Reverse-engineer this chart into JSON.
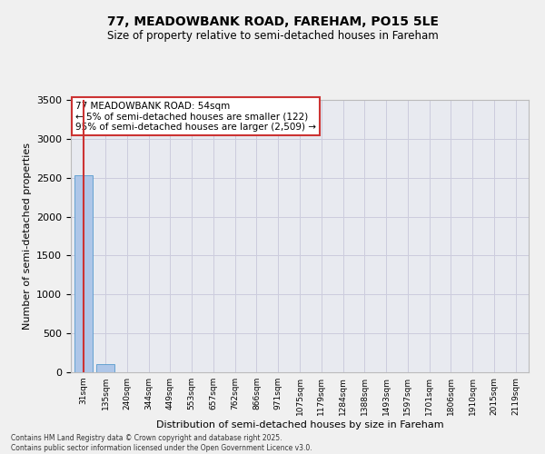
{
  "title_line1": "77, MEADOWBANK ROAD, FAREHAM, PO15 5LE",
  "title_line2": "Size of property relative to semi-detached houses in Fareham",
  "xlabel": "Distribution of semi-detached houses by size in Fareham",
  "ylabel": "Number of semi-detached properties",
  "categories": [
    "31sqm",
    "135sqm",
    "240sqm",
    "344sqm",
    "449sqm",
    "553sqm",
    "657sqm",
    "762sqm",
    "866sqm",
    "971sqm",
    "1075sqm",
    "1179sqm",
    "1284sqm",
    "1388sqm",
    "1493sqm",
    "1597sqm",
    "1701sqm",
    "1806sqm",
    "1910sqm",
    "2015sqm",
    "2119sqm"
  ],
  "values": [
    2530,
    105,
    0,
    0,
    0,
    0,
    0,
    0,
    0,
    0,
    0,
    0,
    0,
    0,
    0,
    0,
    0,
    0,
    0,
    0,
    0
  ],
  "bar_color": "#aec6e8",
  "bar_edge_color": "#5599cc",
  "highlight_color": "#cc3333",
  "annotation_title": "77 MEADOWBANK ROAD: 54sqm",
  "annotation_line2": "← 5% of semi-detached houses are smaller (122)",
  "annotation_line3": "95% of semi-detached houses are larger (2,509) →",
  "annotation_box_color": "#cc3333",
  "annotation_bg_color": "#ffffff",
  "ylim": [
    0,
    3500
  ],
  "yticks": [
    0,
    500,
    1000,
    1500,
    2000,
    2500,
    3000,
    3500
  ],
  "grid_color": "#ccccdd",
  "bg_color": "#e8eaf0",
  "fig_bg_color": "#f0f0f0",
  "footer_line1": "Contains HM Land Registry data © Crown copyright and database right 2025.",
  "footer_line2": "Contains public sector information licensed under the Open Government Licence v3.0."
}
